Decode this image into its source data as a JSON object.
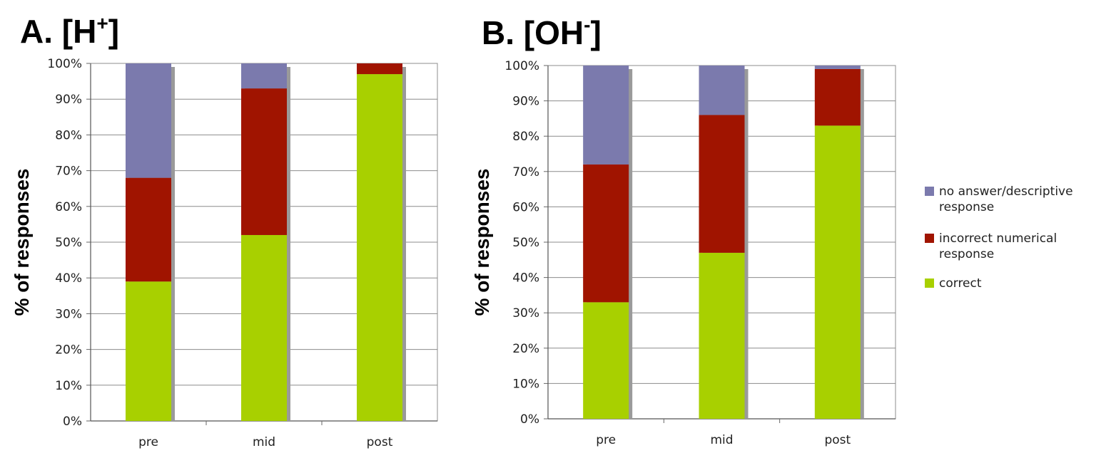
{
  "chart_data": [
    {
      "type": "bar",
      "stacked": true,
      "panel_label": "A. [H",
      "panel_label_sup": "+",
      "panel_label_close": "]",
      "ylabel": "% of responses",
      "categories": [
        "pre",
        "mid",
        "post"
      ],
      "yticks": [
        "0%",
        "10%",
        "20%",
        "30%",
        "40%",
        "50%",
        "60%",
        "70%",
        "80%",
        "90%",
        "100%"
      ],
      "ylim": [
        0,
        100
      ],
      "grid": true,
      "series": [
        {
          "name": "correct",
          "color": "#a8d000",
          "values": [
            39,
            52,
            97
          ]
        },
        {
          "name": "incorrect numerical response",
          "color": "#a01400",
          "values": [
            29,
            41,
            3
          ]
        },
        {
          "name": "no answer/descriptive response",
          "color": "#7b7aad",
          "values": [
            32,
            7,
            0
          ]
        }
      ]
    },
    {
      "type": "bar",
      "stacked": true,
      "panel_label": "B. [OH",
      "panel_label_sup": "-",
      "panel_label_close": "]",
      "ylabel": "% of responses",
      "categories": [
        "pre",
        "mid",
        "post"
      ],
      "yticks": [
        "0%",
        "10%",
        "20%",
        "30%",
        "40%",
        "50%",
        "60%",
        "70%",
        "80%",
        "90%",
        "100%"
      ],
      "ylim": [
        0,
        100
      ],
      "grid": true,
      "series": [
        {
          "name": "correct",
          "color": "#a8d000",
          "values": [
            33,
            47,
            83
          ]
        },
        {
          "name": "incorrect numerical response",
          "color": "#a01400",
          "values": [
            39,
            39,
            16
          ]
        },
        {
          "name": "no answer/descriptive response",
          "color": "#7b7aad",
          "values": [
            28,
            14,
            1
          ]
        }
      ]
    }
  ],
  "legend": {
    "placement": "right",
    "items": [
      {
        "line1": "no answer/descriptive",
        "line2": "response",
        "color": "#7b7aad"
      },
      {
        "line1": "incorrect numerical",
        "line2": "response",
        "color": "#a01400"
      },
      {
        "line1": "correct",
        "line2": "",
        "color": "#a8d000"
      }
    ]
  }
}
